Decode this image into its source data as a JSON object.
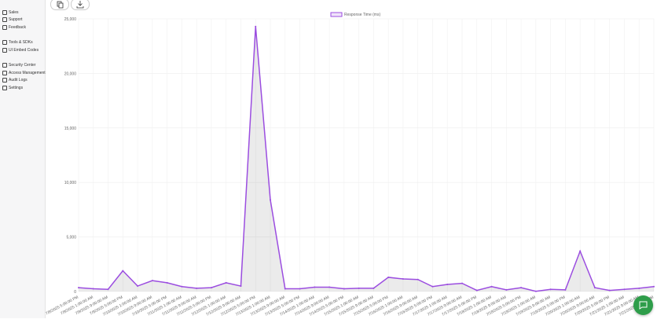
{
  "sidebar": {
    "items": [
      "Sales",
      "Support",
      "Feedback",
      "Tools & SDKs",
      "UI Embed Codes",
      "Security Center",
      "Access Management",
      "Audit Logs",
      "Settings"
    ]
  },
  "chart_data": {
    "type": "line",
    "legend": "Response Time (ms)",
    "color": "#9b4de0",
    "categories": [
      "7/8/2025 5:00:00 PM",
      "7/9/2025 1:00:00 AM",
      "7/9/2025 9:00:00 AM",
      "7/9/2025 5:00:00 PM",
      "7/10/2025 1:00:00 AM",
      "7/10/2025 9:00:00 AM",
      "7/10/2025 5:00:00 PM",
      "7/11/2025 1:00:00 AM",
      "7/11/2025 9:00:00 AM",
      "7/11/2025 5:00:00 PM",
      "7/12/2025 1:00:00 AM",
      "7/12/2025 9:00:00 AM",
      "7/12/2025 5:00:00 PM",
      "7/13/2025 1:00:00 AM",
      "7/13/2025 9:00:00 AM",
      "7/13/2025 5:00:00 PM",
      "7/14/2025 1:00:00 AM",
      "7/14/2025 9:00:00 AM",
      "7/14/2025 5:00:00 PM",
      "7/15/2025 1:00:00 AM",
      "7/15/2025 9:00:00 AM",
      "7/15/2025 5:00:00 PM",
      "7/16/2025 1:00:00 AM",
      "7/16/2025 9:00:00 AM",
      "7/16/2025 5:00:00 PM",
      "7/17/2025 1:00:00 AM",
      "7/17/2025 9:00:00 AM",
      "7/17/2025 5:00:00 PM",
      "7/18/2025 1:00:00 AM",
      "7/18/2025 9:00:00 AM",
      "7/18/2025 5:00:00 PM",
      "7/19/2025 1:00:00 AM",
      "7/19/2025 9:00:00 AM",
      "7/19/2025 5:00:00 PM",
      "7/20/2025 1:00:00 AM",
      "7/20/2025 9:00:00 AM",
      "7/20/2025 5:00:00 PM",
      "7/21/2025 1:00:00 AM",
      "7/21/2025 9:00:00 AM",
      "7/21/2025 5:00:00 PM"
    ],
    "values": [
      350,
      250,
      200,
      1900,
      500,
      1000,
      800,
      450,
      300,
      350,
      800,
      500,
      24300,
      8400,
      250,
      250,
      400,
      400,
      250,
      300,
      300,
      1300,
      1150,
      1100,
      450,
      650,
      750,
      100,
      450,
      150,
      350,
      20,
      200,
      150,
      3700,
      350,
      100,
      200,
      300,
      450
    ],
    "ylim": [
      0,
      25000
    ],
    "yticks": [
      0,
      {
        "value": 5000,
        "label": "5,000"
      },
      {
        "value": 10000,
        "label": "10,000"
      },
      {
        "value": 15000,
        "label": "15,000"
      },
      {
        "value": 20000,
        "label": "20,000"
      },
      {
        "value": 25000,
        "label": "25,000"
      }
    ],
    "grid": true
  }
}
